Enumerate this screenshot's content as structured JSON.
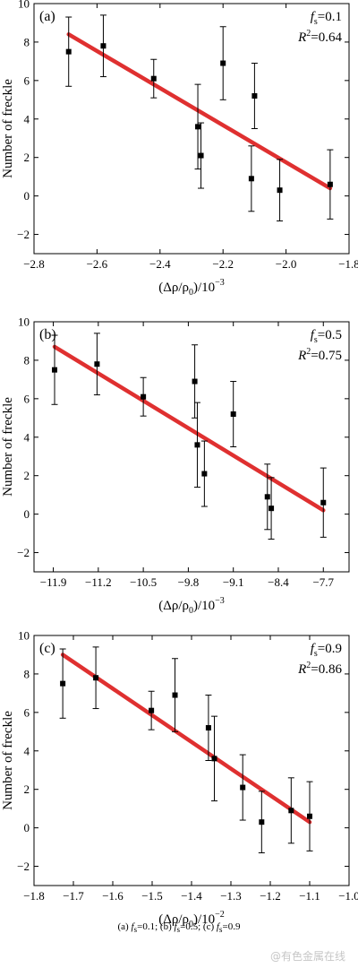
{
  "chart_data": [
    {
      "type": "scatter",
      "panel_label": "(a)",
      "annotation_fs": "0.1",
      "annotation_r2": "0.64",
      "xlabel_base": "(Δρ/ρ",
      "xlabel_exp": "−3",
      "ylabel": "Number of freckle",
      "xlim": [
        -2.8,
        -1.8
      ],
      "ylim": [
        -3,
        10
      ],
      "xticks": [
        -2.8,
        -2.6,
        -2.4,
        -2.2,
        -2.0,
        -1.8
      ],
      "xtick_labels": [
        "−2.8",
        "−2.6",
        "−2.4",
        "−2.2",
        "−2.0",
        "−1.8"
      ],
      "yticks": [
        -2,
        0,
        2,
        4,
        6,
        8,
        10
      ],
      "ytick_labels": [
        "−2",
        "0",
        "2",
        "4",
        "6",
        "8",
        "10"
      ],
      "points": [
        {
          "x": -2.69,
          "y": 7.5,
          "err": 1.8
        },
        {
          "x": -2.58,
          "y": 7.8,
          "err": 1.6
        },
        {
          "x": -2.42,
          "y": 6.1,
          "err": 1.0
        },
        {
          "x": -2.28,
          "y": 3.6,
          "err": 2.2
        },
        {
          "x": -2.27,
          "y": 2.1,
          "err": 1.7
        },
        {
          "x": -2.2,
          "y": 6.9,
          "err": 1.9
        },
        {
          "x": -2.1,
          "y": 5.2,
          "err": 1.7
        },
        {
          "x": -2.11,
          "y": 0.9,
          "err": 1.7
        },
        {
          "x": -2.02,
          "y": 0.3,
          "err": 1.6
        },
        {
          "x": -1.86,
          "y": 0.6,
          "err": 1.8
        }
      ],
      "fit": {
        "x": [
          -2.69,
          -1.86
        ],
        "y": [
          8.4,
          0.4
        ]
      }
    },
    {
      "type": "scatter",
      "panel_label": "(b)",
      "annotation_fs": "0.5",
      "annotation_r2": "0.75",
      "xlabel_base": "(Δρ/ρ",
      "xlabel_exp": "−3",
      "ylabel": "Number of freckle",
      "xlim": [
        -12.2,
        -7.3
      ],
      "ylim": [
        -3,
        10
      ],
      "xticks": [
        -11.9,
        -11.2,
        -10.5,
        -9.8,
        -9.1,
        -8.4,
        -7.7
      ],
      "xtick_labels": [
        "−11.9",
        "−11.2",
        "−10.5",
        "−9.8",
        "−9.1",
        "−8.4",
        "−7.7"
      ],
      "yticks": [
        -2,
        0,
        2,
        4,
        6,
        8,
        10
      ],
      "ytick_labels": [
        "−2",
        "0",
        "2",
        "4",
        "6",
        "8",
        "10"
      ],
      "points": [
        {
          "x": -11.88,
          "y": 7.5,
          "err": 1.8
        },
        {
          "x": -11.22,
          "y": 7.8,
          "err": 1.6
        },
        {
          "x": -10.5,
          "y": 6.1,
          "err": 1.0
        },
        {
          "x": -9.7,
          "y": 6.9,
          "err": 1.9
        },
        {
          "x": -9.66,
          "y": 3.6,
          "err": 2.2
        },
        {
          "x": -9.55,
          "y": 2.1,
          "err": 1.7
        },
        {
          "x": -9.1,
          "y": 5.2,
          "err": 1.7
        },
        {
          "x": -8.57,
          "y": 0.9,
          "err": 1.7
        },
        {
          "x": -8.51,
          "y": 0.3,
          "err": 1.6
        },
        {
          "x": -7.7,
          "y": 0.6,
          "err": 1.8
        }
      ],
      "fit": {
        "x": [
          -11.88,
          -7.7
        ],
        "y": [
          8.7,
          0.2
        ]
      }
    },
    {
      "type": "scatter",
      "panel_label": "(c)",
      "annotation_fs": "0.9",
      "annotation_r2": "0.86",
      "xlabel_base": "(Δρ/ρ",
      "xlabel_exp": "−2",
      "ylabel": "Number of freckle",
      "xlim": [
        -1.8,
        -1.0
      ],
      "ylim": [
        -3,
        10
      ],
      "xticks": [
        -1.8,
        -1.7,
        -1.6,
        -1.5,
        -1.4,
        -1.3,
        -1.2,
        -1.1,
        -1.0
      ],
      "xtick_labels": [
        "−1.8",
        "−1.7",
        "−1.6",
        "−1.5",
        "−1.4",
        "−1.3",
        "−1.2",
        "−1.1",
        "−1.0"
      ],
      "yticks": [
        -2,
        0,
        2,
        4,
        6,
        8,
        10
      ],
      "ytick_labels": [
        "−2",
        "0",
        "2",
        "4",
        "6",
        "8",
        "10"
      ],
      "points": [
        {
          "x": -1.727,
          "y": 7.5,
          "err": 1.8
        },
        {
          "x": -1.643,
          "y": 7.8,
          "err": 1.6
        },
        {
          "x": -1.502,
          "y": 6.1,
          "err": 1.0
        },
        {
          "x": -1.442,
          "y": 6.9,
          "err": 1.9
        },
        {
          "x": -1.357,
          "y": 5.2,
          "err": 1.7
        },
        {
          "x": -1.342,
          "y": 3.6,
          "err": 2.2
        },
        {
          "x": -1.27,
          "y": 2.1,
          "err": 1.7
        },
        {
          "x": -1.222,
          "y": 0.3,
          "err": 1.6
        },
        {
          "x": -1.147,
          "y": 0.9,
          "err": 1.7
        },
        {
          "x": -1.1,
          "y": 0.6,
          "err": 1.8
        }
      ],
      "fit": {
        "x": [
          -1.727,
          -1.1
        ],
        "y": [
          9.0,
          0.3
        ]
      }
    }
  ],
  "caption": {
    "a_label": "(a) ",
    "b_label": "; (b) ",
    "c_label": "; (c) ",
    "f_letter": "f",
    "f_sub": "s",
    "eq": "=",
    "a_val": "0.1",
    "b_val": "0.5",
    "c_val": "0.9"
  },
  "watermark": "@有色金属在线",
  "colors": {
    "fit_line": "#dd1f1f",
    "axis": "#000000",
    "marker": "#000000"
  },
  "annotation_text": {
    "f": "f",
    "f_sub": "s",
    "eq": "=",
    "r": "R",
    "r_sup": "2"
  },
  "xlabel_suffix": {
    "rho_sub": "0",
    "close": ")/10"
  }
}
